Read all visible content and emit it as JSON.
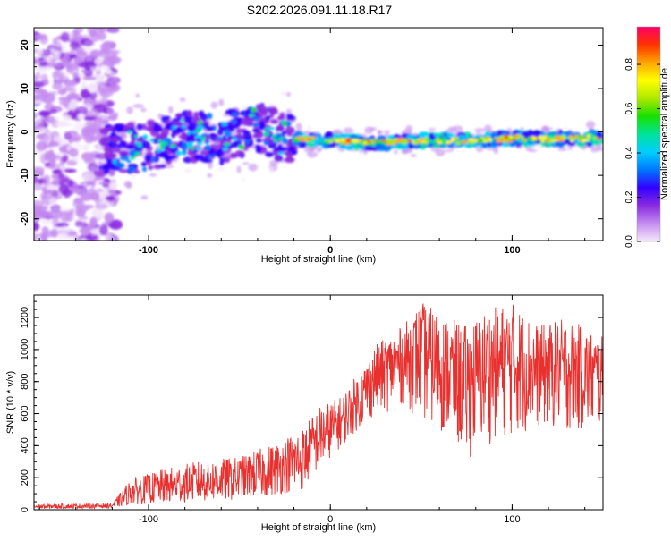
{
  "title": "S202.2026.091.11.18.R17",
  "chart_data": [
    {
      "type": "heatmap",
      "xlabel": "Height of straight line (km)",
      "ylabel": "Frequency (Hz)",
      "xlim": [
        -163,
        150
      ],
      "ylim": [
        -25,
        24
      ],
      "xticks": [
        -100,
        0,
        100
      ],
      "yticks": [
        -20,
        -10,
        0,
        10,
        20
      ],
      "colorbar": {
        "label": "Normalized spectral amplitude",
        "range": [
          0,
          0.97
        ],
        "ticks": [
          "0.0",
          "0.2",
          "0.4",
          "0.6",
          "0.8"
        ],
        "colors": [
          "#f4e8fb",
          "#c58df0",
          "#8a2be2",
          "#3300ff",
          "#0077ff",
          "#00cfff",
          "#00e39a",
          "#18e000",
          "#aee800",
          "#ffff00",
          "#ffa500",
          "#ff3300",
          "#ff0066"
        ]
      },
      "ridge": [
        {
          "x": -125,
          "y": -3.5
        },
        {
          "x": -105,
          "y": -4.0
        },
        {
          "x": -80,
          "y": -1.0
        },
        {
          "x": -60,
          "y": -1.5
        },
        {
          "x": -40,
          "y": 1.5
        },
        {
          "x": -25,
          "y": -1.5
        },
        {
          "x": 0,
          "y": -2.0
        },
        {
          "x": 25,
          "y": -2.5
        },
        {
          "x": 50,
          "y": -2.0
        },
        {
          "x": 75,
          "y": -2.0
        },
        {
          "x": 100,
          "y": -1.5
        },
        {
          "x": 125,
          "y": -1.5
        },
        {
          "x": 148,
          "y": -1.5
        }
      ]
    },
    {
      "type": "line",
      "xlabel": "Height of straight line (km)",
      "ylabel": "SNR (10 * v/v)",
      "xlim": [
        -163,
        150
      ],
      "ylim": [
        0,
        1340
      ],
      "xticks": [
        -100,
        0,
        100
      ],
      "yticks": [
        0,
        200,
        400,
        600,
        800,
        1000,
        1200
      ],
      "color": "#e8302e",
      "envelope": [
        {
          "x": -163,
          "lo": 5,
          "hi": 35
        },
        {
          "x": -120,
          "lo": 10,
          "hi": 40
        },
        {
          "x": -110,
          "lo": 30,
          "hi": 190
        },
        {
          "x": -90,
          "lo": 40,
          "hi": 260
        },
        {
          "x": -70,
          "lo": 50,
          "hi": 310
        },
        {
          "x": -50,
          "lo": 60,
          "hi": 330
        },
        {
          "x": -30,
          "lo": 90,
          "hi": 420
        },
        {
          "x": -15,
          "lo": 120,
          "hi": 520
        },
        {
          "x": -5,
          "lo": 270,
          "hi": 660
        },
        {
          "x": 5,
          "lo": 380,
          "hi": 700
        },
        {
          "x": 15,
          "lo": 500,
          "hi": 850
        },
        {
          "x": 25,
          "lo": 580,
          "hi": 1030
        },
        {
          "x": 40,
          "lo": 650,
          "hi": 1150
        },
        {
          "x": 50,
          "lo": 550,
          "hi": 1300
        },
        {
          "x": 65,
          "lo": 450,
          "hi": 1200
        },
        {
          "x": 75,
          "lo": 300,
          "hi": 1150
        },
        {
          "x": 85,
          "lo": 400,
          "hi": 1250
        },
        {
          "x": 100,
          "lo": 450,
          "hi": 1300
        },
        {
          "x": 115,
          "lo": 500,
          "hi": 1150
        },
        {
          "x": 130,
          "lo": 480,
          "hi": 1200
        },
        {
          "x": 150,
          "lo": 470,
          "hi": 1080
        }
      ]
    }
  ]
}
